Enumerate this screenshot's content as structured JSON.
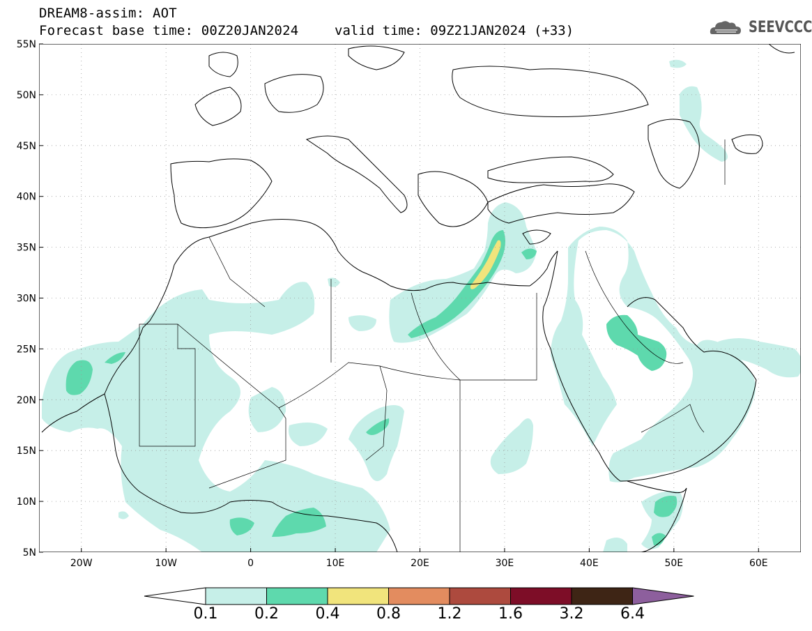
{
  "header": {
    "title": "DREAM8-assim: AOT",
    "base_time": "Forecast base time: 00Z20JAN2024",
    "valid_time": "valid time: 09Z21JAN2024 (+33)",
    "logo_text": "SEEVCCC"
  },
  "map": {
    "lat_ticks": [
      "55N",
      "50N",
      "45N",
      "40N",
      "35N",
      "30N",
      "25N",
      "20N",
      "15N",
      "10N",
      "5N"
    ],
    "lon_ticks": [
      "20W",
      "10W",
      "0",
      "10E",
      "20E",
      "30E",
      "40E",
      "50E",
      "60E"
    ],
    "lat_range": [
      5,
      55
    ],
    "lon_range": [
      -25,
      65
    ],
    "grid": "dotted"
  },
  "colorbar": {
    "levels": [
      "0.1",
      "0.2",
      "0.4",
      "0.8",
      "1.2",
      "1.6",
      "3.2",
      "6.4"
    ],
    "colors": [
      "#ffffff",
      "#c6efe8",
      "#5ed9ad",
      "#f1e47c",
      "#e38c5f",
      "#ad4a3e",
      "#7d0d27",
      "#3e2515",
      "#8d5f9d"
    ]
  },
  "colors": {
    "low": "#c6efe8",
    "mid": "#5ed9ad",
    "high": "#f1e47c"
  },
  "icons": {
    "logo": "cloud-logo-icon"
  }
}
